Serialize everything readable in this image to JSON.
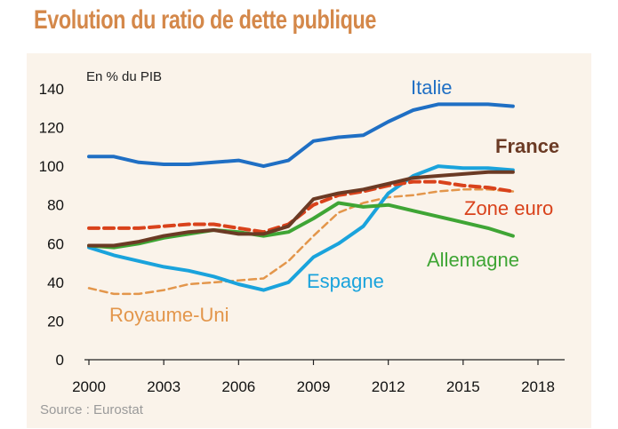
{
  "title": "Evolution du ratio de dette publique",
  "source": "Source : Eurostat",
  "chart_data": {
    "type": "line",
    "ylabel": "En % du PIB",
    "ylim": [
      0,
      140
    ],
    "xlim": [
      2000,
      2018
    ],
    "yticks": [
      0,
      20,
      40,
      60,
      80,
      100,
      120,
      140
    ],
    "xticks": [
      2000,
      2003,
      2006,
      2009,
      2012,
      2015,
      2018
    ],
    "grid": false,
    "x": [
      2000,
      2001,
      2002,
      2003,
      2004,
      2005,
      2006,
      2007,
      2008,
      2009,
      2010,
      2011,
      2012,
      2013,
      2014,
      2015,
      2016,
      2017
    ],
    "series": [
      {
        "name": "Italie",
        "color": "#1f6fc4",
        "width": 4,
        "dash": "",
        "label_pos": "top-right",
        "values": [
          105,
          105,
          102,
          101,
          101,
          102,
          103,
          100,
          103,
          113,
          115,
          116,
          123,
          129,
          132,
          132,
          132,
          131
        ]
      },
      {
        "name": "France",
        "color": "#6b3a24",
        "width": 4,
        "dash": "",
        "bold": true,
        "values": [
          59,
          59,
          61,
          64,
          66,
          67,
          65,
          65,
          69,
          83,
          86,
          88,
          91,
          94,
          95,
          96,
          97,
          97
        ]
      },
      {
        "name": "Zone euro",
        "color": "#d9421b",
        "width": 4,
        "dash": "11 6",
        "values": [
          68,
          68,
          68,
          69,
          70,
          70,
          68,
          66,
          70,
          80,
          85,
          87,
          90,
          92,
          92,
          90,
          89,
          87
        ]
      },
      {
        "name": "Allemagne",
        "color": "#3fa535",
        "width": 4,
        "dash": "",
        "values": [
          59,
          58,
          60,
          63,
          65,
          67,
          66,
          64,
          66,
          73,
          81,
          79,
          80,
          77,
          74,
          71,
          68,
          64
        ]
      },
      {
        "name": "Espagne",
        "color": "#1aa3dc",
        "width": 4,
        "dash": "",
        "values": [
          58,
          54,
          51,
          48,
          46,
          43,
          39,
          36,
          40,
          53,
          60,
          69,
          86,
          95,
          100,
          99,
          99,
          98
        ]
      },
      {
        "name": "Royaume-Uni",
        "color": "#e3964b",
        "width": 2.5,
        "dash": "8 5",
        "values": [
          37,
          34,
          34,
          36,
          39,
          40,
          41,
          42,
          51,
          64,
          76,
          81,
          84,
          85,
          87,
          88,
          88,
          87
        ]
      }
    ]
  }
}
